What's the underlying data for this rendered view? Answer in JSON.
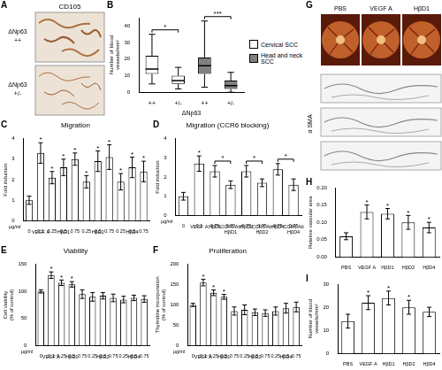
{
  "chart_data": [
    {
      "panel": "B",
      "type": "box",
      "ylabel": "Number of blood vessels/mm²",
      "xlabel": "ΔNp63",
      "categories": [
        "++",
        "+/-",
        "++",
        "+/-"
      ],
      "series": [
        {
          "name": "Cervical SCC",
          "color": "#ffffff",
          "min": [
            5,
            2,
            null,
            null
          ],
          "q1": [
            11,
            5,
            null,
            null
          ],
          "median": [
            14,
            7,
            null,
            null
          ],
          "q3": [
            22,
            10,
            null,
            null
          ],
          "max": [
            35,
            15,
            null,
            null
          ]
        },
        {
          "name": "Head and neck SCC",
          "color": "#808080",
          "min": [
            null,
            null,
            3,
            0
          ],
          "q1": [
            null,
            null,
            11,
            2
          ],
          "median": [
            null,
            null,
            16,
            4
          ],
          "q3": [
            null,
            null,
            21,
            7
          ],
          "max": [
            null,
            null,
            43,
            12
          ]
        }
      ],
      "ylim": [
        0,
        45
      ],
      "yticks": [
        0,
        10,
        20,
        30,
        40
      ],
      "grid": false,
      "legend": "right",
      "significance": [
        {
          "from": 0,
          "to": 1,
          "text": "*"
        },
        {
          "from": 2,
          "to": 3,
          "text": "***"
        }
      ]
    },
    {
      "panel": "C",
      "type": "bar",
      "title": "Migration",
      "ylabel": "Fold induction",
      "xlabel": "µg/ml",
      "categories": [
        "0",
        "0.1",
        "0.25",
        "0.5",
        "0.75",
        "0.25",
        "0.5",
        "0.75",
        "0.25",
        "0.5",
        "0.75"
      ],
      "values": [
        1,
        3.3,
        2.1,
        2.6,
        3.0,
        1.9,
        2.9,
        3.1,
        1.9,
        2.6,
        2.4
      ],
      "errors": [
        0.2,
        0.5,
        0.3,
        0.4,
        0.3,
        0.3,
        0.5,
        0.6,
        0.4,
        0.5,
        0.5
      ],
      "significance": [
        null,
        "*",
        "*",
        "*",
        "*",
        "*",
        "*",
        "*",
        "*",
        "*",
        "*"
      ],
      "groups": [
        {
          "label": "VEGF A",
          "from": 1,
          "to": 1
        },
        {
          "label": "HβD1",
          "from": 2,
          "to": 4
        },
        {
          "label": "HβD2",
          "from": 5,
          "to": 7
        },
        {
          "label": "HβD4",
          "from": 8,
          "to": 10
        }
      ],
      "color": "#ffffff",
      "ylim": [
        0,
        4
      ],
      "yticks": [
        0,
        1,
        2,
        3,
        4
      ],
      "grid": false
    },
    {
      "panel": "D",
      "type": "bar",
      "title": "Migration (CCR6 blocking)",
      "ylabel": "Fold induction",
      "xlabel": "µg/ml",
      "categories": [
        "0",
        "0.1",
        "0.75",
        "0.75",
        "0.75",
        "0.75",
        "0.75",
        "0.75"
      ],
      "values": [
        1,
        2.7,
        2.3,
        1.6,
        2.3,
        1.7,
        2.4,
        1.6
      ],
      "errors": [
        0.2,
        0.4,
        0.3,
        0.2,
        0.3,
        0.2,
        0.3,
        0.3
      ],
      "significance": [
        null,
        "*",
        null,
        null,
        null,
        null,
        null,
        null
      ],
      "brackets": [
        {
          "from": 2,
          "to": 3,
          "text": "*"
        },
        {
          "from": 4,
          "to": 5,
          "text": "*"
        },
        {
          "from": 6,
          "to": 7,
          "text": "*"
        }
      ],
      "groups": [
        {
          "label": "VEGF A",
          "from": 1,
          "to": 1
        },
        {
          "label": "HβD1",
          "from": 2,
          "to": 2
        },
        {
          "label": [
            "CCR6 Ab",
            "HβD1"
          ],
          "from": 3,
          "to": 3
        },
        {
          "label": "HβD2",
          "from": 4,
          "to": 4
        },
        {
          "label": [
            "CCR6 Ab",
            "HβD2"
          ],
          "from": 5,
          "to": 5
        },
        {
          "label": "HβD4",
          "from": 6,
          "to": 6
        },
        {
          "label": [
            "CCR6 Ab",
            "HβD4"
          ],
          "from": 7,
          "to": 7
        }
      ],
      "color": "#ffffff",
      "ylim": [
        0,
        4
      ],
      "yticks": [
        0,
        1,
        2,
        3,
        4
      ],
      "grid": false
    },
    {
      "panel": "E",
      "type": "bar",
      "title": "Viability",
      "ylabel": "Cell viability (% of control)",
      "xlabel": "µg/ml",
      "categories": [
        "0",
        "0.1",
        "0.25",
        "0.5",
        "0.75",
        "0.25",
        "0.5",
        "0.75",
        "0.25",
        "0.5",
        "0.75"
      ],
      "values": [
        100,
        130,
        116,
        113,
        95,
        90,
        92,
        88,
        85,
        88,
        86
      ],
      "errors": [
        3,
        6,
        5,
        5,
        8,
        8,
        6,
        7,
        6,
        5,
        6
      ],
      "significance": [
        null,
        "*",
        "*",
        "*",
        null,
        null,
        null,
        null,
        null,
        null,
        null
      ],
      "groups": [
        {
          "label": "VEGF A",
          "from": 1,
          "to": 1
        },
        {
          "label": "HβD1",
          "from": 2,
          "to": 4
        },
        {
          "label": "HβD2",
          "from": 5,
          "to": 7
        },
        {
          "label": "HβD4",
          "from": 8,
          "to": 10
        }
      ],
      "color": "#ffffff",
      "ylim": [
        0,
        150
      ],
      "yticks": [
        0,
        50,
        100,
        150
      ],
      "grid": false
    },
    {
      "panel": "F",
      "type": "bar",
      "title": "Proliferation",
      "ylabel": "Thymidine incorporation (% of control)",
      "xlabel": "µg/ml",
      "categories": [
        "0",
        "0.1",
        "0.25",
        "0.5",
        "0.75",
        "0.25",
        "0.5",
        "0.75",
        "0.25",
        "0.5",
        "0.75"
      ],
      "values": [
        100,
        155,
        130,
        120,
        85,
        88,
        82,
        80,
        85,
        92,
        95
      ],
      "errors": [
        4,
        8,
        7,
        6,
        10,
        12,
        8,
        8,
        10,
        12,
        12
      ],
      "significance": [
        null,
        "*",
        "*",
        "*",
        null,
        null,
        null,
        null,
        null,
        null,
        null
      ],
      "groups": [
        {
          "label": "VEGF A",
          "from": 1,
          "to": 1
        },
        {
          "label": "HβD1",
          "from": 2,
          "to": 4
        },
        {
          "label": "HβD2",
          "from": 5,
          "to": 7
        },
        {
          "label": "HβD4",
          "from": 8,
          "to": 10
        }
      ],
      "color": "#ffffff",
      "ylim": [
        0,
        200
      ],
      "yticks": [
        0,
        50,
        100,
        150,
        200
      ],
      "grid": false
    },
    {
      "panel": "H",
      "type": "bar",
      "ylabel": "Relative vascular area",
      "categories": [
        "PBS",
        "VEGF A",
        "HβD1",
        "HβD2",
        "HβD4"
      ],
      "values": [
        0.06,
        0.13,
        0.125,
        0.1,
        0.085
      ],
      "errors": [
        0.01,
        0.02,
        0.015,
        0.02,
        0.015
      ],
      "significance": [
        null,
        "*",
        "*",
        "*",
        "*"
      ],
      "color": "#ffffff",
      "ylim": [
        0,
        0.2
      ],
      "yticks": [
        {
          "value": 0,
          "label": "0.00"
        },
        {
          "value": 0.05,
          "label": "0.05"
        },
        {
          "value": 0.1,
          "label": "0.10"
        },
        {
          "value": 0.15,
          "label": "0.15"
        },
        {
          "value": 0.2,
          "label": "0.20"
        }
      ],
      "grid": false
    },
    {
      "panel": "I",
      "type": "bar",
      "ylabel": "Number of blood vessels/mm²",
      "categories": [
        "PBS",
        "VEGF A",
        "HβD1",
        "HβD2",
        "HβD4"
      ],
      "values": [
        14,
        22,
        24,
        20,
        18
      ],
      "errors": [
        3,
        3,
        3,
        3,
        2
      ],
      "significance": [
        null,
        "*",
        "*",
        "*",
        null
      ],
      "color": "#ffffff",
      "ylim": [
        0,
        30
      ],
      "yticks": [
        0,
        10,
        20,
        30
      ],
      "grid": false
    }
  ],
  "images": [
    {
      "panel": "A",
      "title": "CD105",
      "rows": [
        {
          "label": "ΔNp63",
          "sublabel": "++"
        },
        {
          "label": "ΔNp63",
          "sublabel": "+/-"
        }
      ]
    },
    {
      "panel": "G",
      "columns": [
        "PBS",
        "VEGF A",
        "HβD1"
      ],
      "row_label": "α SMA"
    }
  ]
}
